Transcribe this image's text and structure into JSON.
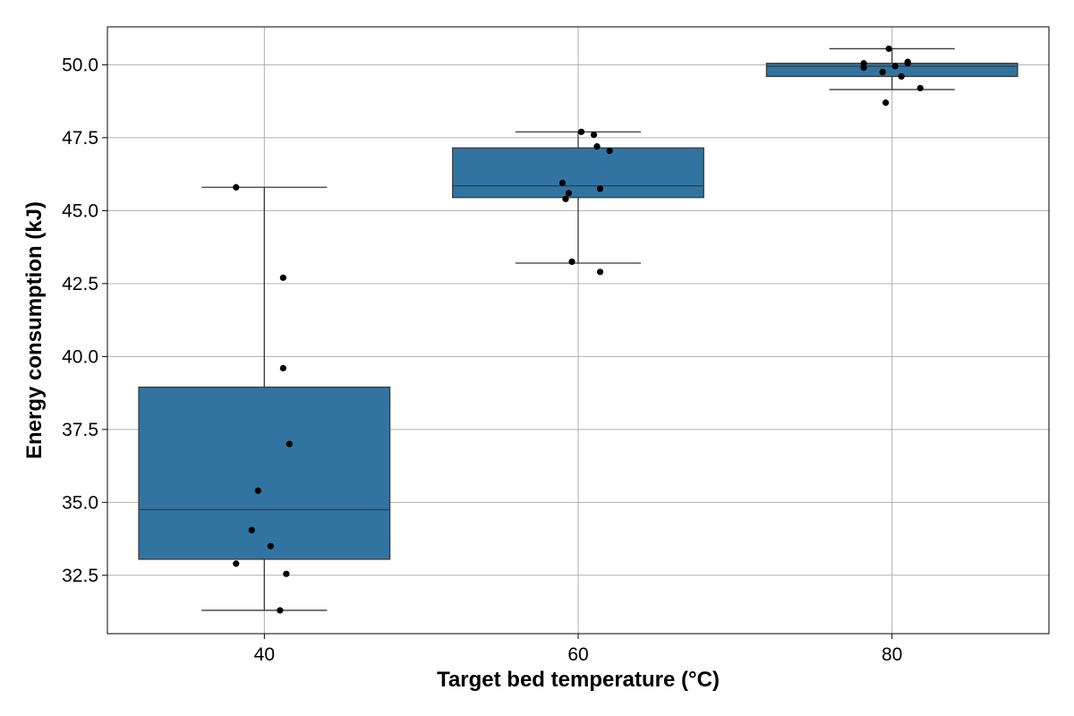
{
  "chart_data": {
    "type": "box",
    "xlabel": "Target bed temperature (°C)",
    "ylabel": "Energy consumption (kJ)",
    "ylim": [
      30.5,
      51.3
    ],
    "yticks": [
      32.5,
      35.0,
      37.5,
      40.0,
      42.5,
      45.0,
      47.5,
      50.0
    ],
    "grid": true,
    "colors": {
      "box": "#3274a1",
      "edge": "#3a3a3a",
      "point": "#000000",
      "grid": "#b0b0b0"
    },
    "groups": [
      {
        "category": "40",
        "q1": 33.05,
        "median": 34.75,
        "q3": 38.95,
        "whisker_low": 31.3,
        "whisker_high": 45.8,
        "points": [
          {
            "offset": -0.09,
            "y": 45.8
          },
          {
            "offset": 0.06,
            "y": 42.7
          },
          {
            "offset": 0.06,
            "y": 39.6
          },
          {
            "offset": 0.08,
            "y": 37.0
          },
          {
            "offset": -0.02,
            "y": 35.4
          },
          {
            "offset": -0.04,
            "y": 34.05
          },
          {
            "offset": 0.02,
            "y": 33.5
          },
          {
            "offset": -0.09,
            "y": 32.9
          },
          {
            "offset": 0.07,
            "y": 32.55
          },
          {
            "offset": 0.05,
            "y": 31.3
          }
        ]
      },
      {
        "category": "60",
        "q1": 45.45,
        "median": 45.85,
        "q3": 47.15,
        "whisker_low": 43.2,
        "whisker_high": 47.7,
        "points": [
          {
            "offset": 0.01,
            "y": 47.7
          },
          {
            "offset": 0.05,
            "y": 47.6
          },
          {
            "offset": 0.06,
            "y": 47.2
          },
          {
            "offset": 0.1,
            "y": 47.05
          },
          {
            "offset": -0.05,
            "y": 45.95
          },
          {
            "offset": 0.07,
            "y": 45.75
          },
          {
            "offset": -0.03,
            "y": 45.6
          },
          {
            "offset": -0.04,
            "y": 45.4
          },
          {
            "offset": -0.02,
            "y": 43.25
          },
          {
            "offset": 0.07,
            "y": 42.9
          }
        ]
      },
      {
        "category": "80",
        "q1": 49.6,
        "median": 49.95,
        "q3": 50.05,
        "whisker_low": 49.15,
        "whisker_high": 50.55,
        "points": [
          {
            "offset": -0.01,
            "y": 50.55
          },
          {
            "offset": 0.05,
            "y": 50.1
          },
          {
            "offset": 0.05,
            "y": 50.05
          },
          {
            "offset": -0.09,
            "y": 50.05
          },
          {
            "offset": 0.01,
            "y": 49.95
          },
          {
            "offset": -0.09,
            "y": 49.9
          },
          {
            "offset": -0.03,
            "y": 49.75
          },
          {
            "offset": 0.03,
            "y": 49.6
          },
          {
            "offset": 0.09,
            "y": 49.2
          },
          {
            "offset": -0.02,
            "y": 48.7
          }
        ]
      }
    ]
  }
}
